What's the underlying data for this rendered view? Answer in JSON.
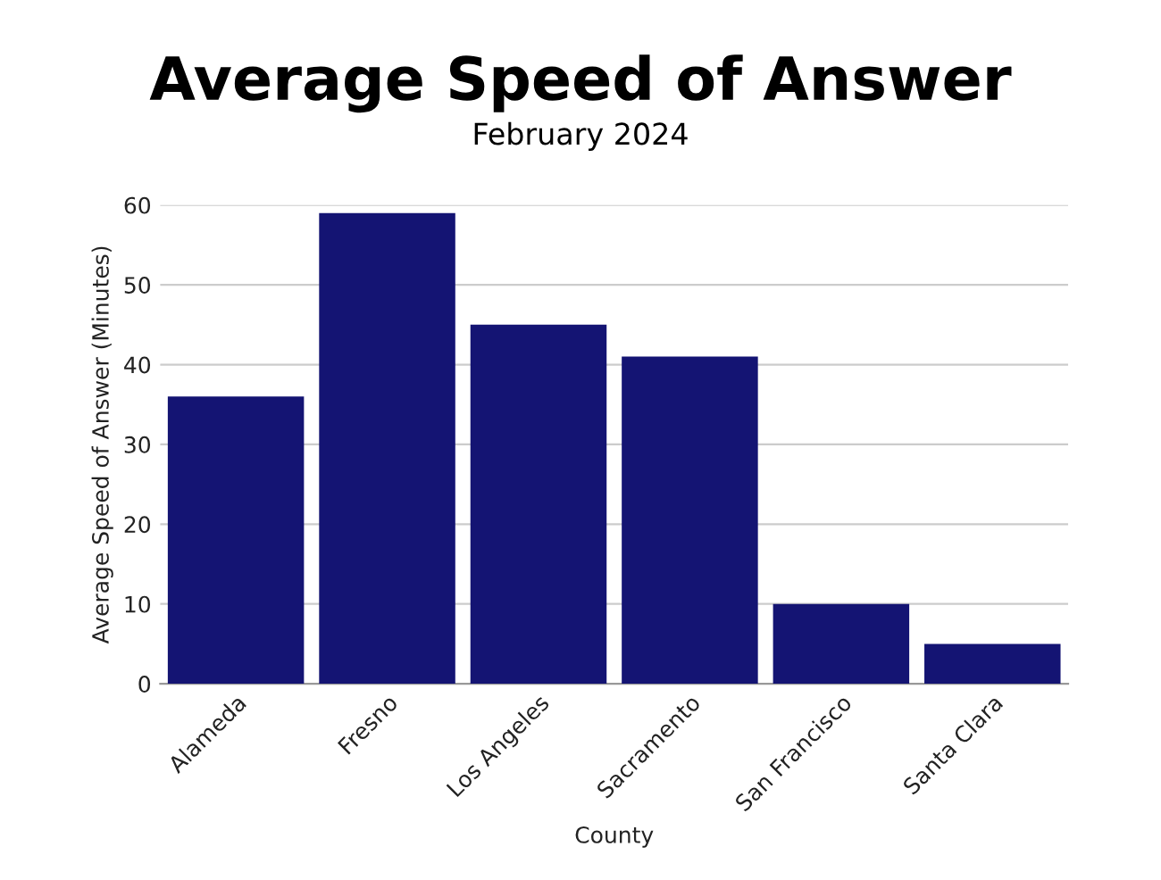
{
  "chart_data": {
    "type": "bar",
    "title": "Average Speed of Answer",
    "subtitle": "February 2024",
    "xlabel": "County",
    "ylabel": "Average Speed of Answer (Minutes)",
    "categories": [
      "Alameda",
      "Fresno",
      "Los Angeles",
      "Sacramento",
      "San Francisco",
      "Santa Clara"
    ],
    "values": [
      36,
      59,
      45,
      41,
      10,
      5
    ],
    "color": "#141473",
    "ylim": [
      0,
      60
    ],
    "yticks": [
      0,
      10,
      20,
      30,
      40,
      50,
      60
    ],
    "grid": "y"
  }
}
